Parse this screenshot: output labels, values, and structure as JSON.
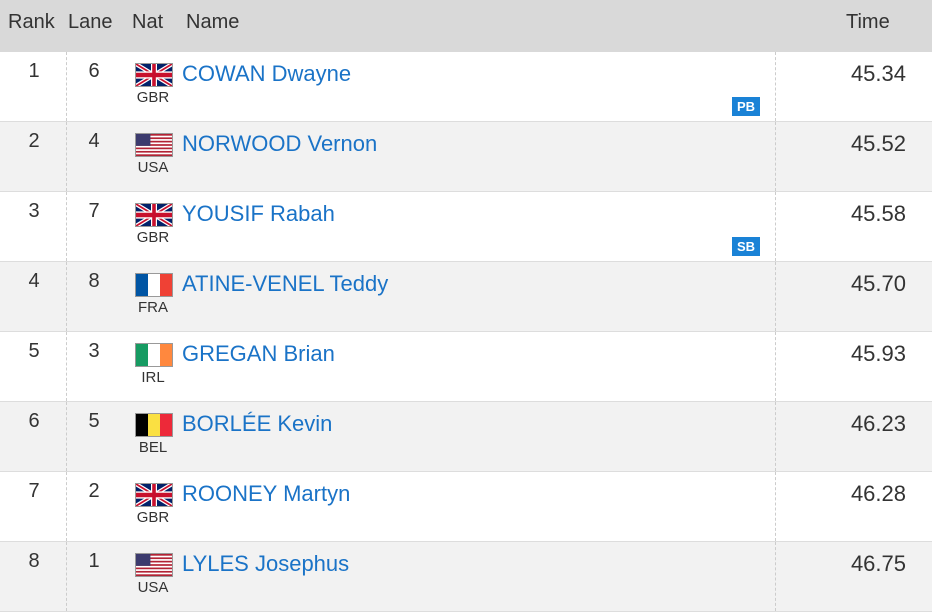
{
  "header": {
    "rank": "Rank",
    "lane": "Lane",
    "nat": "Nat",
    "name": "Name",
    "time": "Time"
  },
  "rows": [
    {
      "rank": "1",
      "lane": "6",
      "flag": "gbr-flag-icon",
      "nat": "GBR",
      "name": "COWAN Dwayne",
      "badge": "PB",
      "time": "45.34"
    },
    {
      "rank": "2",
      "lane": "4",
      "flag": "usa-flag-icon",
      "nat": "USA",
      "name": "NORWOOD Vernon",
      "badge": "",
      "time": "45.52"
    },
    {
      "rank": "3",
      "lane": "7",
      "flag": "gbr-flag-icon",
      "nat": "GBR",
      "name": "YOUSIF Rabah",
      "badge": "SB",
      "time": "45.58"
    },
    {
      "rank": "4",
      "lane": "8",
      "flag": "fra-flag-icon",
      "nat": "FRA",
      "name": "ATINE-VENEL Teddy",
      "badge": "",
      "time": "45.70"
    },
    {
      "rank": "5",
      "lane": "3",
      "flag": "irl-flag-icon",
      "nat": "IRL",
      "name": "GREGAN Brian",
      "badge": "",
      "time": "45.93"
    },
    {
      "rank": "6",
      "lane": "5",
      "flag": "bel-flag-icon",
      "nat": "BEL",
      "name": "BORLÉE Kevin",
      "badge": "",
      "time": "46.23"
    },
    {
      "rank": "7",
      "lane": "2",
      "flag": "gbr-flag-icon",
      "nat": "GBR",
      "name": "ROONEY Martyn",
      "badge": "",
      "time": "46.28"
    },
    {
      "rank": "8",
      "lane": "1",
      "flag": "usa-flag-icon",
      "nat": "USA",
      "name": "LYLES Josephus",
      "badge": "",
      "time": "46.75"
    }
  ],
  "colors": {
    "header_bg": "#d9d9d9",
    "row_alt": "#f2f2f2",
    "link": "#1a73c7",
    "badge": "#1a82d6"
  }
}
